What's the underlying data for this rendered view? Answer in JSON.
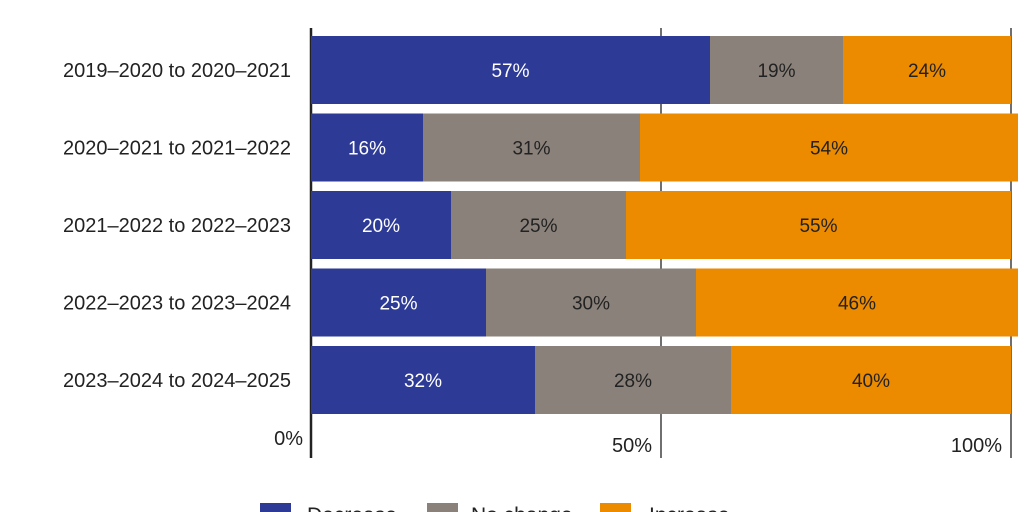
{
  "chart_data": {
    "type": "bar",
    "orientation": "horizontal",
    "stacked": true,
    "title": "",
    "xlabel": "",
    "ylabel": "",
    "xlim": [
      0,
      100
    ],
    "x_ticks": [
      {
        "value": 0,
        "label": "0%"
      },
      {
        "value": 50,
        "label": "50%"
      },
      {
        "value": 100,
        "label": "100%"
      }
    ],
    "categories": [
      "2019–2020 to 2020–2021",
      "2020–2021 to 2021–2022",
      "2021–2022 to 2022–2023",
      "2022–2023 to 2023–2024",
      "2023–2024 to 2024–2025"
    ],
    "series": [
      {
        "name": "Decrease",
        "color": "#2e3b96",
        "label_color": "#ffffff",
        "values": [
          57,
          16,
          20,
          25,
          32
        ]
      },
      {
        "name": "No change",
        "color": "#8a827a",
        "label_color": "#222222",
        "values": [
          19,
          31,
          25,
          30,
          28
        ]
      },
      {
        "name": "Increase",
        "color": "#ec8a00",
        "label_color": "#222222",
        "values": [
          24,
          54,
          55,
          46,
          40
        ]
      }
    ],
    "value_suffix": "%",
    "legend_position": "bottom",
    "grid": true
  }
}
